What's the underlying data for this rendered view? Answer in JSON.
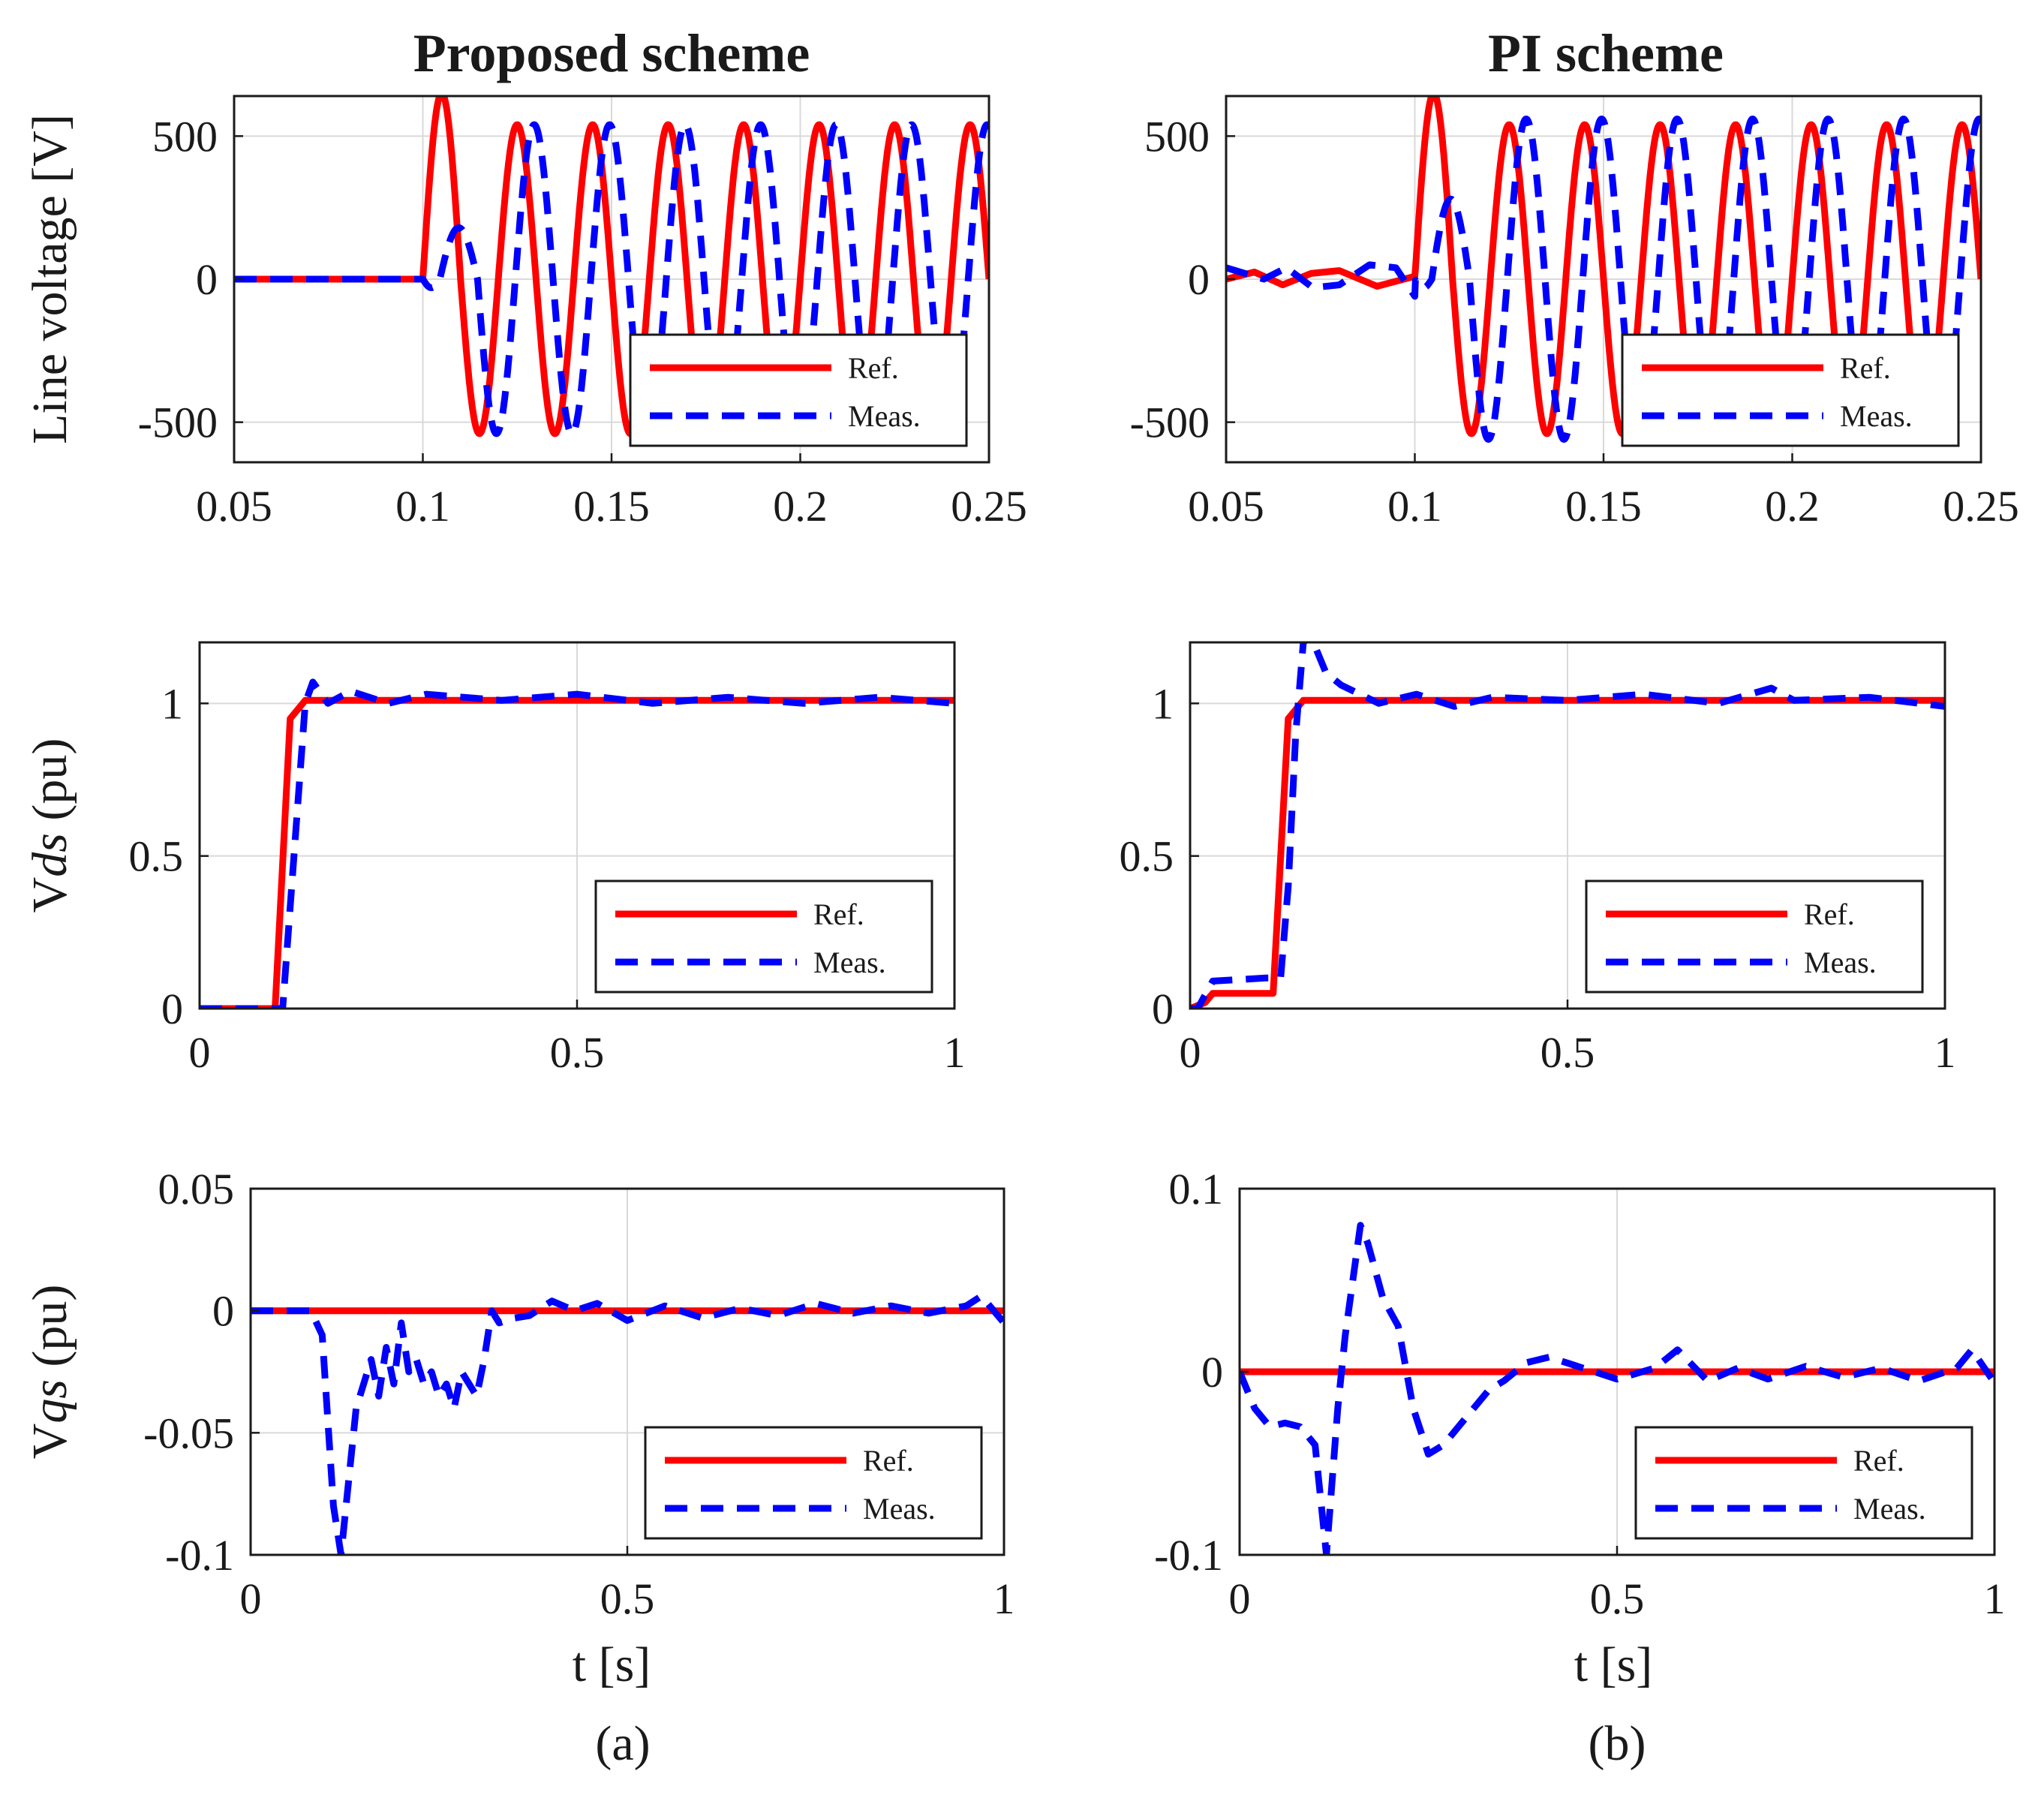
{
  "colors": {
    "ref": "#ff0000",
    "meas": "#0000ff",
    "axis": "#1a1a1a",
    "grid": "#d9d9d9"
  },
  "columns": [
    {
      "id": "a",
      "title": "Proposed scheme",
      "caption": "(a)",
      "xlabel": "t  [s]"
    },
    {
      "id": "b",
      "title": "PI scheme",
      "caption": "(b)",
      "xlabel": "t  [s]"
    }
  ],
  "chart_data": [
    {
      "id": "a-line",
      "type": "line",
      "column": "a",
      "row": 0,
      "ylabel": "Line voltage [V]",
      "xlim": [
        0.05,
        0.25
      ],
      "ylim": [
        -640,
        640
      ],
      "xticks": [
        0.05,
        0.1,
        0.15,
        0.2,
        0.25
      ],
      "xtick_labels": [
        "0.05",
        "0.1",
        "0.15",
        "0.2",
        "0.25"
      ],
      "yticks": [
        500,
        0,
        -500
      ],
      "ytick_labels": [
        "500",
        "0",
        "-500"
      ],
      "grid": true,
      "legend": {
        "position": "bottom-right",
        "entries": [
          "Ref.",
          "Meas."
        ]
      },
      "series": [
        {
          "name": "Ref.",
          "style": "solid",
          "kind": "sine_step",
          "t0": 0.1,
          "freq": 50,
          "amp": 540,
          "first_peak": 650,
          "pre": []
        },
        {
          "name": "Meas.",
          "style": "dashed",
          "kind": "sine_step",
          "t0": 0.1,
          "freq": 50,
          "amp": 540,
          "lag": 0.0045,
          "first_peak": 180,
          "pre": []
        }
      ]
    },
    {
      "id": "a-vds",
      "type": "line",
      "column": "a",
      "row": 1,
      "ylabel": "Vds (pu)",
      "xlim": [
        0,
        1
      ],
      "ylim": [
        0,
        1.2
      ],
      "xticks": [
        0,
        0.5,
        1
      ],
      "xtick_labels": [
        "0",
        "0.5",
        "1"
      ],
      "yticks": [
        1,
        0.5,
        0
      ],
      "ytick_labels": [
        "1",
        "0.5",
        "0"
      ],
      "grid": true,
      "legend": {
        "position": "bottom-right",
        "entries": [
          "Ref.",
          "Meas."
        ]
      },
      "series": [
        {
          "name": "Ref.",
          "style": "solid",
          "x": [
            0,
            0.1,
            0.12,
            0.14,
            0.2,
            1.0
          ],
          "y": [
            0,
            0,
            0.95,
            1.01,
            1.01,
            1.01
          ]
        },
        {
          "name": "Meas.",
          "style": "dashed",
          "x": [
            0,
            0.1,
            0.11,
            0.14,
            0.15,
            0.17,
            0.2,
            0.25,
            0.3,
            0.4,
            0.5,
            0.6,
            0.7,
            0.8,
            0.9,
            1.0
          ],
          "y": [
            0,
            0,
            0.0,
            1.0,
            1.07,
            1.0,
            1.04,
            1.0,
            1.03,
            1.01,
            1.03,
            1.0,
            1.02,
            1.0,
            1.02,
            1.0
          ]
        }
      ]
    },
    {
      "id": "a-vqs",
      "type": "line",
      "column": "a",
      "row": 2,
      "ylabel": "Vqs (pu)",
      "xlim": [
        0,
        1
      ],
      "ylim": [
        -0.1,
        0.05
      ],
      "xticks": [
        0,
        0.5,
        1
      ],
      "xtick_labels": [
        "0",
        "0.5",
        "1"
      ],
      "yticks": [
        0.05,
        0,
        -0.05,
        -0.1
      ],
      "ytick_labels": [
        "0.05",
        "0",
        "-0.05",
        "-0.1"
      ],
      "grid": true,
      "legend": {
        "position": "bottom-right",
        "entries": [
          "Ref.",
          "Meas."
        ]
      },
      "series": [
        {
          "name": "Ref.",
          "style": "solid",
          "x": [
            0,
            1
          ],
          "y": [
            0,
            0
          ]
        },
        {
          "name": "Meas.",
          "style": "dashed",
          "x": [
            0,
            0.08,
            0.095,
            0.11,
            0.12,
            0.13,
            0.14,
            0.15,
            0.16,
            0.17,
            0.18,
            0.19,
            0.2,
            0.21,
            0.22,
            0.23,
            0.24,
            0.25,
            0.26,
            0.27,
            0.28,
            0.29,
            0.3,
            0.31,
            0.32,
            0.33,
            0.35,
            0.37,
            0.4,
            0.43,
            0.46,
            0.5,
            0.55,
            0.6,
            0.65,
            0.7,
            0.75,
            0.8,
            0.85,
            0.9,
            0.95,
            0.97,
            1.0
          ],
          "y": [
            0,
            0,
            -0.01,
            -0.08,
            -0.1,
            -0.07,
            -0.04,
            -0.03,
            -0.02,
            -0.035,
            -0.015,
            -0.03,
            -0.005,
            -0.025,
            -0.02,
            -0.03,
            -0.025,
            -0.035,
            -0.03,
            -0.04,
            -0.025,
            -0.03,
            -0.035,
            -0.02,
            0.0,
            -0.005,
            -0.003,
            -0.002,
            0.004,
            0.0,
            0.003,
            -0.004,
            0.002,
            -0.003,
            0.001,
            -0.002,
            0.003,
            -0.001,
            0.002,
            -0.001,
            0.002,
            0.006,
            -0.005
          ]
        }
      ]
    },
    {
      "id": "b-line",
      "type": "line",
      "column": "b",
      "row": 0,
      "ylabel": "",
      "xlim": [
        0.05,
        0.25
      ],
      "ylim": [
        -640,
        640
      ],
      "xticks": [
        0.05,
        0.1,
        0.15,
        0.2,
        0.25
      ],
      "xtick_labels": [
        "0.05",
        "0.1",
        "0.15",
        "0.2",
        "0.25"
      ],
      "yticks": [
        500,
        0,
        -500
      ],
      "ytick_labels": [
        "500",
        "0",
        "-500"
      ],
      "grid": true,
      "legend": {
        "position": "bottom-right",
        "entries": [
          "Ref.",
          "Meas."
        ]
      },
      "series": [
        {
          "name": "Ref.",
          "style": "solid",
          "kind": "sine_step",
          "t0": 0.1,
          "freq": 50,
          "amp": 540,
          "first_peak": 650,
          "pre": [
            0.05,
            0,
            0.0575,
            25,
            0.065,
            -20,
            0.0725,
            20,
            0.08,
            30,
            0.09,
            -25,
            0.1,
            10
          ]
        },
        {
          "name": "Meas.",
          "style": "dashed",
          "kind": "sine_step",
          "t0": 0.1,
          "freq": 50,
          "amp": 560,
          "lag": 0.0045,
          "first_peak": 280,
          "pre": [
            0.05,
            40,
            0.06,
            0,
            0.066,
            40,
            0.073,
            -30,
            0.08,
            -20,
            0.088,
            50,
            0.095,
            40,
            0.1,
            -60
          ]
        }
      ]
    },
    {
      "id": "b-vds",
      "type": "line",
      "column": "b",
      "row": 1,
      "ylabel": "",
      "xlim": [
        0,
        1
      ],
      "ylim": [
        0,
        1.2
      ],
      "xticks": [
        0,
        0.5,
        1
      ],
      "xtick_labels": [
        "0",
        "0.5",
        "1"
      ],
      "yticks": [
        1,
        0.5,
        0
      ],
      "ytick_labels": [
        "1",
        "0.5",
        "0"
      ],
      "grid": true,
      "legend": {
        "position": "bottom-right",
        "entries": [
          "Ref.",
          "Meas."
        ]
      },
      "series": [
        {
          "name": "Ref.",
          "style": "solid",
          "x": [
            0,
            0.02,
            0.03,
            0.1,
            0.11,
            0.13,
            0.15,
            1.0
          ],
          "y": [
            0,
            0.02,
            0.05,
            0.05,
            0.05,
            0.95,
            1.01,
            1.01
          ]
        },
        {
          "name": "Meas.",
          "style": "dashed",
          "x": [
            0,
            0.01,
            0.03,
            0.1,
            0.12,
            0.13,
            0.14,
            0.15,
            0.16,
            0.18,
            0.2,
            0.25,
            0.3,
            0.35,
            0.4,
            0.5,
            0.6,
            0.7,
            0.77,
            0.8,
            0.9,
            1.0
          ],
          "y": [
            0,
            0,
            0.09,
            0.1,
            0.1,
            0.4,
            0.9,
            1.2,
            1.22,
            1.1,
            1.06,
            1.0,
            1.03,
            0.99,
            1.02,
            1.01,
            1.03,
            1.0,
            1.05,
            1.01,
            1.02,
            0.99
          ]
        }
      ]
    },
    {
      "id": "b-vqs",
      "type": "line",
      "column": "b",
      "row": 2,
      "ylabel": "",
      "xlim": [
        0,
        1
      ],
      "ylim": [
        -0.1,
        0.1
      ],
      "xticks": [
        0,
        0.5,
        1
      ],
      "xtick_labels": [
        "0",
        "0.5",
        "1"
      ],
      "yticks": [
        0.1,
        0,
        -0.1
      ],
      "ytick_labels": [
        "0.1",
        "0",
        "-0.1"
      ],
      "grid": true,
      "legend": {
        "position": "bottom-right",
        "entries": [
          "Ref.",
          "Meas."
        ]
      },
      "series": [
        {
          "name": "Ref.",
          "style": "solid",
          "x": [
            0,
            1
          ],
          "y": [
            0,
            0
          ]
        },
        {
          "name": "Meas.",
          "style": "dashed",
          "x": [
            0,
            0.02,
            0.04,
            0.06,
            0.08,
            0.1,
            0.115,
            0.13,
            0.14,
            0.16,
            0.17,
            0.19,
            0.21,
            0.23,
            0.25,
            0.27,
            0.29,
            0.31,
            0.33,
            0.35,
            0.38,
            0.41,
            0.44,
            0.47,
            0.5,
            0.55,
            0.58,
            0.62,
            0.66,
            0.7,
            0.75,
            0.8,
            0.85,
            0.9,
            0.95,
            0.97,
            1.0
          ],
          "y": [
            0,
            -0.02,
            -0.03,
            -0.028,
            -0.03,
            -0.04,
            -0.1,
            -0.02,
            0.02,
            0.08,
            0.07,
            0.04,
            0.025,
            -0.02,
            -0.045,
            -0.04,
            -0.03,
            -0.02,
            -0.01,
            -0.005,
            0.005,
            0.008,
            0.004,
            0.0,
            -0.004,
            0.002,
            0.012,
            -0.005,
            0.002,
            -0.004,
            0.003,
            -0.003,
            0.002,
            -0.005,
            0.002,
            0.012,
            -0.006
          ]
        }
      ]
    }
  ]
}
